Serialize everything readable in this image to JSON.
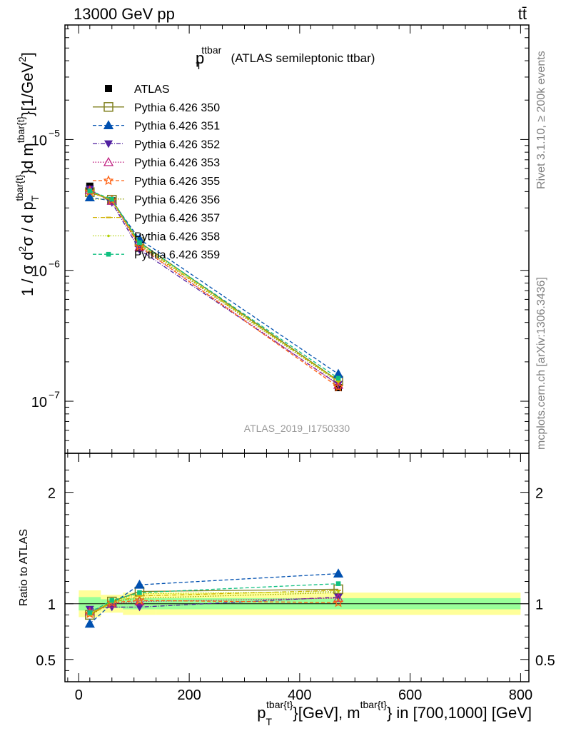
{
  "header": {
    "energy_label": "13000 GeV pp",
    "process_label": "tt̄",
    "rivet_label": "Rivet 3.1.10, ≥ 200k events",
    "mcplots_label": "mcplots.cern.ch [arXiv:1306.3436]"
  },
  "chart_data": {
    "type": "line",
    "title": {
      "main": "p",
      "sub": "T",
      "sup": "ttbar",
      "suffix": " (ATLAS semileptonic ttbar)"
    },
    "analysis_label": "ATLAS_2019_I1750330",
    "xlabel": {
      "p": "p",
      "p_sub": "T",
      "p_sup": "tbar{t}",
      "mid": "}[GeV], m",
      "m_sup": "tbar{t}",
      "end": "} in [700,1000] [GeV]"
    },
    "ylabel": {
      "a": "1 / σ d",
      "a_sup": "2",
      "b": "σ / d p",
      "b_sub": "T",
      "b_sup": "tbar{t}",
      "c": "}d m",
      "c_sup": "tbar{t}",
      "d": "}[1/GeV",
      "d_sup": "2",
      "e": "]"
    },
    "ratio_ylabel": "Ratio to ATLAS",
    "x_range": [
      -25,
      815
    ],
    "x_ticks": [
      0,
      200,
      400,
      600,
      800
    ],
    "x_tick_labels": [
      "0",
      "200",
      "400",
      "600",
      "800"
    ],
    "y_range_log": [
      4e-08,
      7.5e-05
    ],
    "y_tick_labels": [
      {
        "value": 1e-05,
        "base": "10",
        "exp": "−5"
      },
      {
        "value": 1e-06,
        "base": "10",
        "exp": "−6"
      },
      {
        "value": 1e-07,
        "base": "10",
        "exp": "−7"
      }
    ],
    "ratio_range": [
      0.3,
      2.35
    ],
    "ratio_ticks": [
      0.5,
      1,
      2
    ],
    "ratio_tick_labels": [
      "0.5",
      "1",
      "2"
    ],
    "x": [
      20,
      60,
      110,
      470
    ],
    "bins": [
      [
        0,
        40
      ],
      [
        40,
        80
      ],
      [
        80,
        140
      ],
      [
        140,
        800
      ]
    ],
    "data": {
      "name": "ATLAS",
      "values": [
        4.4e-06,
        3.4e-06,
        1.48e-06,
        1.27e-07
      ],
      "band_inner": [
        0.06,
        0.04,
        0.05,
        0.05
      ],
      "band_outer": [
        0.12,
        0.08,
        0.1,
        0.1
      ]
    },
    "series": [
      {
        "name": "Pythia 6.426 350",
        "color": "#808020",
        "dash": "",
        "marker": "square-open",
        "ratio": [
          0.9,
          1.02,
          1.11,
          1.13
        ]
      },
      {
        "name": "Pythia 6.426 351",
        "color": "#0050b0",
        "dash": "5,3",
        "marker": "triangle-up",
        "ratio": [
          0.82,
          1.0,
          1.17,
          1.27
        ]
      },
      {
        "name": "Pythia 6.426 352",
        "color": "#5020a0",
        "dash": "6,2,1,2",
        "marker": "triangle-down",
        "ratio": [
          0.95,
          0.97,
          0.97,
          1.06
        ]
      },
      {
        "name": "Pythia 6.426 353",
        "color": "#c02080",
        "dash": "1.5,2",
        "marker": "triangle-up-open",
        "ratio": [
          0.93,
          1.0,
          1.02,
          1.05
        ]
      },
      {
        "name": "Pythia 6.426 355",
        "color": "#ff6010",
        "dash": "5,3",
        "marker": "star-open",
        "ratio": [
          0.91,
          1.01,
          1.03,
          1.01
        ]
      },
      {
        "name": "Pythia 6.426 356",
        "color": "#90a000",
        "dash": "1.5,2",
        "marker": "none",
        "ratio": [
          0.89,
          1.02,
          1.05,
          1.1
        ]
      },
      {
        "name": "Pythia 6.426 357",
        "color": "#d0b000",
        "dash": "6,2,1,2",
        "marker": "dash",
        "ratio": [
          0.9,
          1.01,
          1.07,
          1.12
        ]
      },
      {
        "name": "Pythia 6.426 358",
        "color": "#b0d000",
        "dash": "1.5,2",
        "marker": "dot",
        "ratio": [
          0.91,
          1.02,
          1.09,
          1.11
        ]
      },
      {
        "name": "Pythia 6.426 359",
        "color": "#10c080",
        "dash": "5,3",
        "marker": "square-small",
        "ratio": [
          0.92,
          1.03,
          1.1,
          1.18
        ]
      }
    ]
  }
}
